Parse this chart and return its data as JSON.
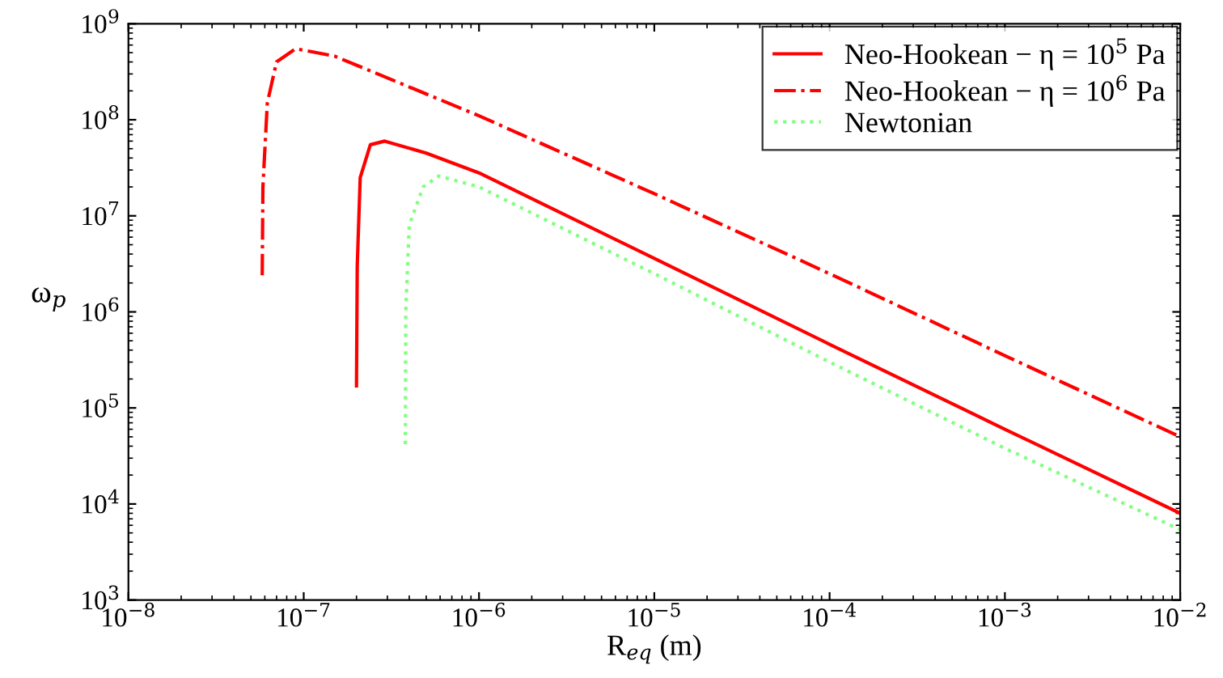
{
  "chart_data": {
    "type": "line",
    "xlabel": "R$_{eq}$ (m)",
    "ylabel": "ω$_{p}$",
    "log": "xy",
    "xlim": [
      1e-08,
      0.01
    ],
    "ylim": [
      1000.0,
      1000000000.0
    ],
    "xticks": [
      {
        "value": 1e-08,
        "label": "10$^{−8}$"
      },
      {
        "value": 1e-07,
        "label": "10$^{−7}$"
      },
      {
        "value": 1e-06,
        "label": "10$^{−6}$"
      },
      {
        "value": 1e-05,
        "label": "10$^{−5}$"
      },
      {
        "value": 0.0001,
        "label": "10$^{−4}$"
      },
      {
        "value": 0.001,
        "label": "10$^{−3}$"
      },
      {
        "value": 0.01,
        "label": "10$^{−2}$"
      }
    ],
    "yticks": [
      {
        "value": 1000.0,
        "label": "10$^{3}$"
      },
      {
        "value": 10000.0,
        "label": "10$^{4}$"
      },
      {
        "value": 100000.0,
        "label": "10$^{5}$"
      },
      {
        "value": 1000000.0,
        "label": "10$^{6}$"
      },
      {
        "value": 10000000.0,
        "label": "10$^{7}$"
      },
      {
        "value": 100000000.0,
        "label": "10$^{8}$"
      },
      {
        "value": 1000000000.0,
        "label": "10$^{9}$"
      }
    ],
    "legend": "top right",
    "grid": false,
    "marker": "none",
    "series": [
      {
        "name": "Neo-Hookean − η = 10$^{5}$ Pa",
        "color": "#ff0000",
        "line_style": "solid",
        "x": [
          2e-07,
          2.02e-07,
          2.1e-07,
          2.4e-07,
          2.9e-07,
          5e-07,
          1e-06,
          1e-05,
          0.0001,
          0.001,
          0.01
        ],
        "values": [
          170000.0,
          3000000.0,
          25000000.0,
          55000000.0,
          60000000.0,
          45000000.0,
          28000000.0,
          3600000.0,
          460000.0,
          60000.0,
          8000.0
        ]
      },
      {
        "name": "Neo-Hookean − η = 10$^{6}$ Pa",
        "color": "#ff0000",
        "line_style": "dashdot",
        "x": [
          5.8e-08,
          5.85e-08,
          6.2e-08,
          7e-08,
          9e-08,
          1.5e-07,
          1e-06,
          1e-05,
          0.0001,
          0.001,
          0.01
        ],
        "values": [
          2400000.0,
          20000000.0,
          150000000.0,
          400000000.0,
          550000000.0,
          460000000.0,
          110000000.0,
          17000000.0,
          2500000.0,
          350000.0,
          50000.0
        ]
      },
      {
        "name": "Newtonian",
        "color": "#80ff80",
        "line_style": "dotted",
        "x": [
          3.8e-07,
          3.82e-07,
          4e-07,
          4.8e-07,
          5.9e-07,
          1e-06,
          1e-05,
          0.0001,
          0.001,
          0.01
        ],
        "values": [
          42000.0,
          1000000.0,
          8000000.0,
          20000000.0,
          26000000.0,
          20000000.0,
          2500000.0,
          300000.0,
          38000.0,
          5400.0
        ]
      }
    ]
  }
}
